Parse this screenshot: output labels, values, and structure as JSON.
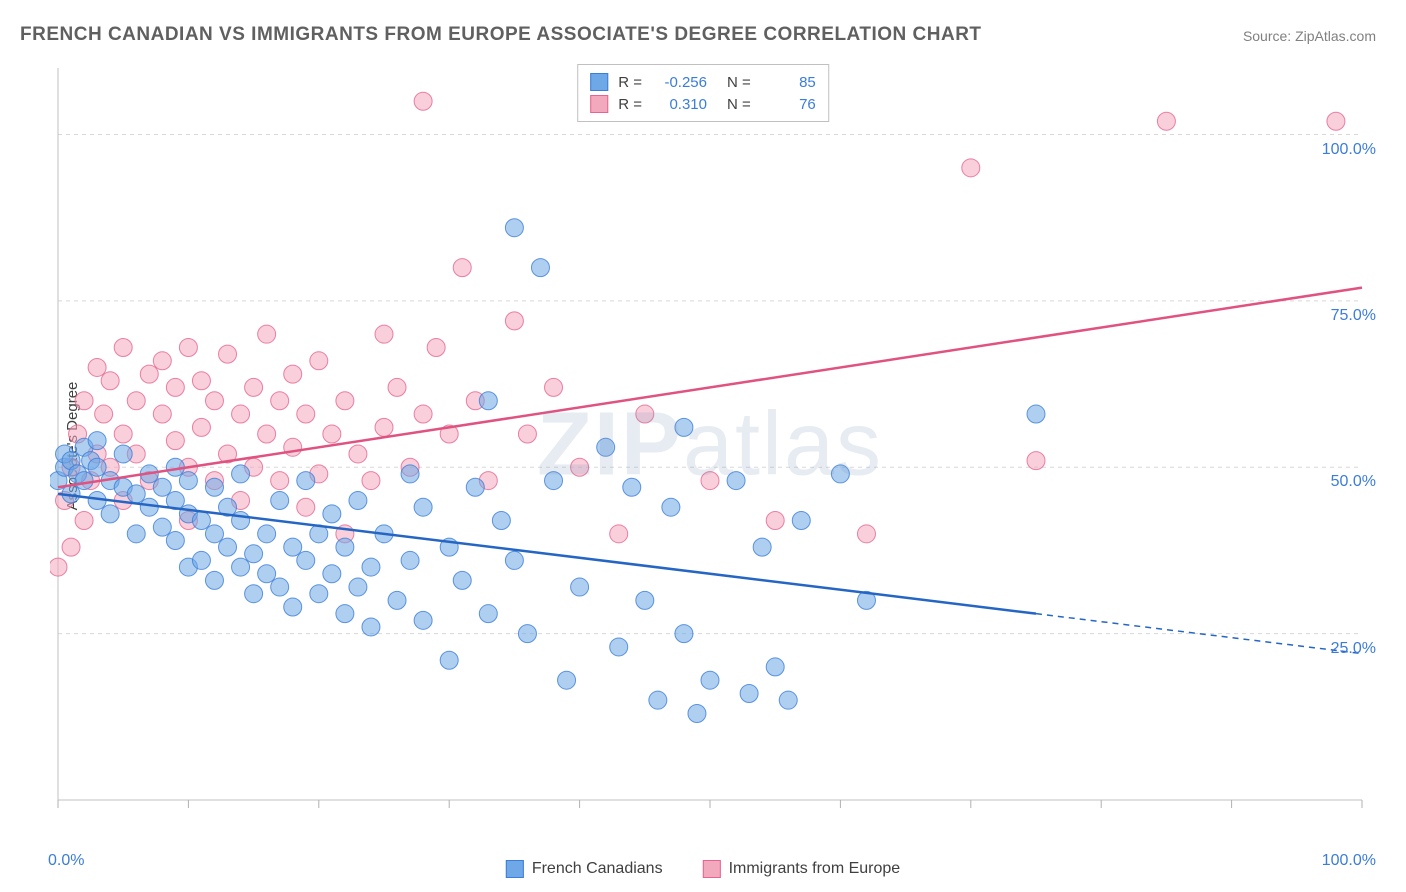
{
  "title": "FRENCH CANADIAN VS IMMIGRANTS FROM EUROPE ASSOCIATE'S DEGREE CORRELATION CHART",
  "source": "Source: ZipAtlas.com",
  "y_axis_label": "Associate's Degree",
  "watermark_a": "ZIP",
  "watermark_b": "atlas",
  "chart": {
    "type": "scatter",
    "background_color": "#ffffff",
    "grid_color": "#d8d8d8",
    "axis_color": "#c0c0c0",
    "tick_color": "#b0b0b0",
    "xlim": [
      0,
      100
    ],
    "ylim": [
      0,
      110
    ],
    "y_gridlines": [
      25,
      50,
      75,
      100
    ],
    "y_tick_labels": [
      "25.0%",
      "50.0%",
      "75.0%",
      "100.0%"
    ],
    "x_tick_label_left": "0.0%",
    "x_tick_label_right": "100.0%",
    "x_ticks": [
      0,
      10,
      20,
      30,
      40,
      50,
      60,
      70,
      80,
      90,
      100
    ],
    "marker_radius": 9,
    "marker_opacity": 0.55,
    "line_width": 2.5
  },
  "series": {
    "blue": {
      "label": "French Canadians",
      "color": "#6ea8e6",
      "stroke": "#3b7dd8",
      "line_color": "#2566c4",
      "R_label": "R =",
      "R": "-0.256",
      "N_label": "N =",
      "N": "85",
      "trend": {
        "x1": 0,
        "y1": 46,
        "x2": 75,
        "y2": 28,
        "x2_dash": 100,
        "y2_dash": 22
      },
      "points": [
        [
          0,
          48
        ],
        [
          0.5,
          50
        ],
        [
          0.5,
          52
        ],
        [
          1,
          46
        ],
        [
          1,
          51
        ],
        [
          1.5,
          49
        ],
        [
          2,
          48
        ],
        [
          2,
          53
        ],
        [
          2.5,
          51
        ],
        [
          3,
          45
        ],
        [
          3,
          50
        ],
        [
          3,
          54
        ],
        [
          4,
          43
        ],
        [
          4,
          48
        ],
        [
          5,
          47
        ],
        [
          5,
          52
        ],
        [
          6,
          46
        ],
        [
          6,
          40
        ],
        [
          7,
          44
        ],
        [
          7,
          49
        ],
        [
          8,
          41
        ],
        [
          8,
          47
        ],
        [
          9,
          39
        ],
        [
          9,
          45
        ],
        [
          9,
          50
        ],
        [
          10,
          35
        ],
        [
          10,
          43
        ],
        [
          10,
          48
        ],
        [
          11,
          42
        ],
        [
          11,
          36
        ],
        [
          12,
          40
        ],
        [
          12,
          47
        ],
        [
          12,
          33
        ],
        [
          13,
          38
        ],
        [
          13,
          44
        ],
        [
          14,
          35
        ],
        [
          14,
          42
        ],
        [
          14,
          49
        ],
        [
          15,
          37
        ],
        [
          15,
          31
        ],
        [
          16,
          34
        ],
        [
          16,
          40
        ],
        [
          17,
          32
        ],
        [
          17,
          45
        ],
        [
          18,
          29
        ],
        [
          18,
          38
        ],
        [
          19,
          36
        ],
        [
          19,
          48
        ],
        [
          20,
          31
        ],
        [
          20,
          40
        ],
        [
          21,
          34
        ],
        [
          21,
          43
        ],
        [
          22,
          28
        ],
        [
          22,
          38
        ],
        [
          23,
          32
        ],
        [
          23,
          45
        ],
        [
          24,
          35
        ],
        [
          24,
          26
        ],
        [
          25,
          40
        ],
        [
          26,
          30
        ],
        [
          27,
          36
        ],
        [
          27,
          49
        ],
        [
          28,
          27
        ],
        [
          28,
          44
        ],
        [
          30,
          38
        ],
        [
          30,
          21
        ],
        [
          31,
          33
        ],
        [
          32,
          47
        ],
        [
          33,
          28
        ],
        [
          33,
          60
        ],
        [
          34,
          42
        ],
        [
          35,
          36
        ],
        [
          35,
          86
        ],
        [
          36,
          25
        ],
        [
          37,
          80
        ],
        [
          38,
          48
        ],
        [
          39,
          18
        ],
        [
          40,
          32
        ],
        [
          42,
          53
        ],
        [
          43,
          23
        ],
        [
          44,
          47
        ],
        [
          45,
          30
        ],
        [
          46,
          15
        ],
        [
          47,
          44
        ],
        [
          48,
          25
        ],
        [
          48,
          56
        ],
        [
          49,
          13
        ],
        [
          50,
          18
        ],
        [
          52,
          48
        ],
        [
          53,
          16
        ],
        [
          54,
          38
        ],
        [
          55,
          20
        ],
        [
          56,
          15
        ],
        [
          57,
          42
        ],
        [
          60,
          49
        ],
        [
          62,
          30
        ],
        [
          75,
          58
        ]
      ]
    },
    "pink": {
      "label": "Immigrants from Europe",
      "color": "#f2a8bd",
      "stroke": "#e6648f",
      "line_color": "#e0527f",
      "R_label": "R =",
      "R": "0.310",
      "N_label": "N =",
      "N": "76",
      "trend": {
        "x1": 0,
        "y1": 47,
        "x2": 100,
        "y2": 77
      },
      "points": [
        [
          0,
          35
        ],
        [
          0.5,
          45
        ],
        [
          1,
          38
        ],
        [
          1,
          50
        ],
        [
          1.5,
          55
        ],
        [
          2,
          42
        ],
        [
          2,
          60
        ],
        [
          2.5,
          48
        ],
        [
          3,
          52
        ],
        [
          3,
          65
        ],
        [
          3.5,
          58
        ],
        [
          4,
          50
        ],
        [
          4,
          63
        ],
        [
          5,
          55
        ],
        [
          5,
          45
        ],
        [
          5,
          68
        ],
        [
          6,
          60
        ],
        [
          6,
          52
        ],
        [
          7,
          64
        ],
        [
          7,
          48
        ],
        [
          8,
          58
        ],
        [
          8,
          66
        ],
        [
          9,
          54
        ],
        [
          9,
          62
        ],
        [
          10,
          50
        ],
        [
          10,
          68
        ],
        [
          10,
          42
        ],
        [
          11,
          56
        ],
        [
          11,
          63
        ],
        [
          12,
          48
        ],
        [
          12,
          60
        ],
        [
          13,
          52
        ],
        [
          13,
          67
        ],
        [
          14,
          58
        ],
        [
          14,
          45
        ],
        [
          15,
          62
        ],
        [
          15,
          50
        ],
        [
          16,
          55
        ],
        [
          16,
          70
        ],
        [
          17,
          48
        ],
        [
          17,
          60
        ],
        [
          18,
          53
        ],
        [
          18,
          64
        ],
        [
          19,
          58
        ],
        [
          19,
          44
        ],
        [
          20,
          49
        ],
        [
          20,
          66
        ],
        [
          21,
          55
        ],
        [
          22,
          60
        ],
        [
          22,
          40
        ],
        [
          23,
          52
        ],
        [
          24,
          48
        ],
        [
          25,
          56
        ],
        [
          25,
          70
        ],
        [
          26,
          62
        ],
        [
          27,
          50
        ],
        [
          28,
          58
        ],
        [
          28,
          105
        ],
        [
          29,
          68
        ],
        [
          30,
          55
        ],
        [
          31,
          80
        ],
        [
          32,
          60
        ],
        [
          33,
          48
        ],
        [
          35,
          72
        ],
        [
          36,
          55
        ],
        [
          38,
          62
        ],
        [
          40,
          50
        ],
        [
          43,
          40
        ],
        [
          45,
          58
        ],
        [
          50,
          48
        ],
        [
          55,
          42
        ],
        [
          62,
          40
        ],
        [
          70,
          95
        ],
        [
          75,
          51
        ],
        [
          85,
          102
        ],
        [
          98,
          102
        ]
      ]
    }
  },
  "legend_bottom": {
    "blue_label": "French Canadians",
    "pink_label": "Immigrants from Europe"
  }
}
